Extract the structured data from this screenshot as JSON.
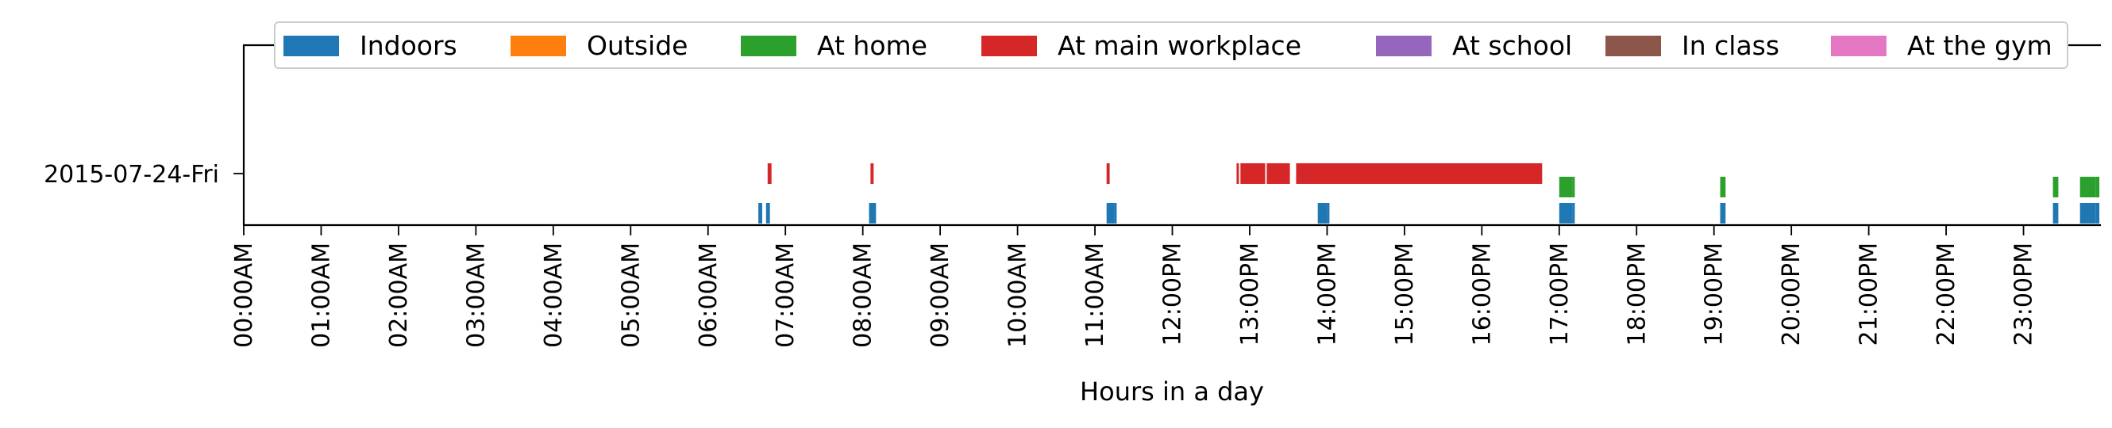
{
  "chart_data": {
    "type": "timeline",
    "xlabel": "Hours in a day",
    "ylabel": "",
    "xlim": [
      0,
      24
    ],
    "ylim": [
      0,
      1
    ],
    "grid": false,
    "legend_placement": "top-center",
    "x_tick_labels": [
      "00:00AM",
      "01:00AM",
      "02:00AM",
      "03:00AM",
      "04:00AM",
      "05:00AM",
      "06:00AM",
      "07:00AM",
      "08:00AM",
      "09:00AM",
      "10:00AM",
      "11:00AM",
      "12:00PM",
      "13:00PM",
      "14:00PM",
      "15:00PM",
      "16:00PM",
      "17:00PM",
      "18:00PM",
      "19:00PM",
      "20:00PM",
      "21:00PM",
      "22:00PM",
      "23:00PM"
    ],
    "days": [
      "2015-07-24-Fri"
    ],
    "series": [
      {
        "name": "Indoors",
        "color": "#1f77b4",
        "lane": 0,
        "segments": [
          [
            6.65,
            6.7
          ],
          [
            6.75,
            6.8
          ],
          [
            8.08,
            8.17
          ],
          [
            11.15,
            11.25
          ],
          [
            11.25,
            11.27
          ],
          [
            13.88,
            14.0
          ],
          [
            14.0,
            14.02
          ],
          [
            17.0,
            17.17
          ],
          [
            17.17,
            17.19
          ],
          [
            19.08,
            19.15
          ],
          [
            23.38,
            23.45
          ],
          [
            23.73,
            23.93
          ],
          [
            23.93,
            23.98
          ]
        ]
      },
      {
        "name": "Outside",
        "color": "#ff7f0e",
        "lane": 1,
        "segments": []
      },
      {
        "name": "At home",
        "color": "#2ca02c",
        "lane": 1,
        "segments": [
          [
            17.0,
            17.17
          ],
          [
            17.17,
            17.19
          ],
          [
            19.08,
            19.15
          ],
          [
            23.38,
            23.45
          ],
          [
            23.73,
            23.93
          ],
          [
            23.93,
            23.98
          ]
        ]
      },
      {
        "name": "At main workplace",
        "color": "#d62728",
        "lane": 2,
        "segments": [
          [
            6.77,
            6.82
          ],
          [
            8.1,
            8.14
          ],
          [
            11.15,
            11.19
          ],
          [
            12.83,
            12.85
          ],
          [
            12.88,
            13.2
          ],
          [
            13.22,
            13.52
          ],
          [
            13.6,
            16.78
          ]
        ]
      },
      {
        "name": "At school",
        "color": "#9467bd",
        "lane": 2,
        "segments": []
      },
      {
        "name": "In class",
        "color": "#8c564b",
        "lane": 2,
        "segments": []
      },
      {
        "name": "At the gym",
        "color": "#e377c2",
        "lane": 2,
        "segments": []
      }
    ]
  }
}
